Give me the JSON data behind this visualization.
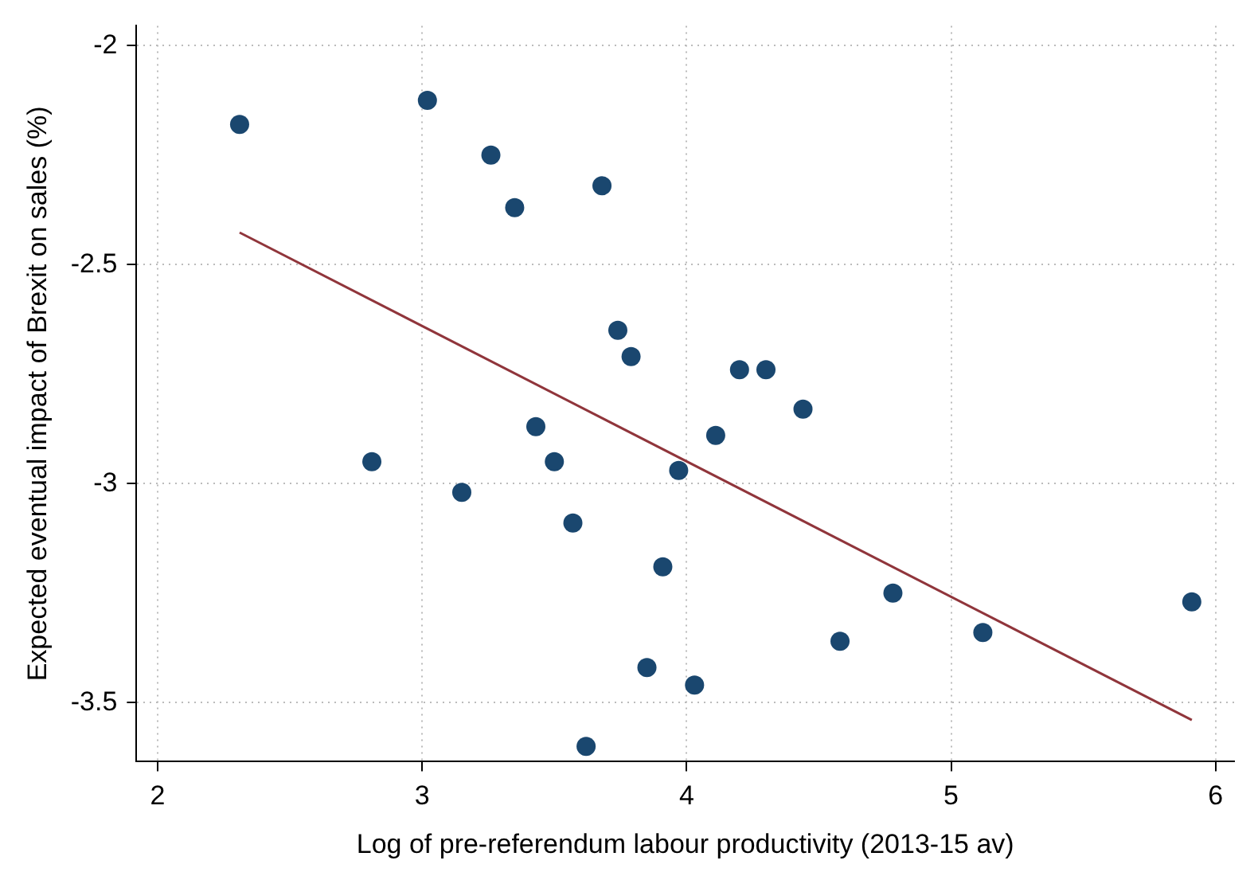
{
  "chart_data": {
    "type": "scatter",
    "xlabel": "Log of pre-referendum labour productivity (2013-15 av)",
    "ylabel": "Expected eventual impact of Brexit on sales (%)",
    "xlim": [
      1.92,
      6.07
    ],
    "ylim": [
      -3.635,
      -1.955
    ],
    "xticks": [
      2,
      3,
      4,
      5,
      6
    ],
    "yticks": [
      -3.5,
      -3,
      -2.5,
      -2
    ],
    "grid": true,
    "legend": false,
    "marker": "circle",
    "series": [
      {
        "type": "scatter",
        "color": "#1a476f",
        "x": [
          2.31,
          3.02,
          3.26,
          3.35,
          3.68,
          3.74,
          3.79,
          4.2,
          4.3,
          4.44,
          4.11,
          3.43,
          2.81,
          3.5,
          3.97,
          3.15,
          3.57,
          3.91,
          4.78,
          5.91,
          4.58,
          5.12,
          3.85,
          4.03,
          3.62
        ],
        "values": [
          -2.18,
          -2.125,
          -2.25,
          -2.37,
          -2.32,
          -2.65,
          -2.71,
          -2.74,
          -2.74,
          -2.83,
          -2.89,
          -2.87,
          -2.95,
          -2.95,
          -2.97,
          -3.02,
          -3.09,
          -3.19,
          -3.25,
          -3.27,
          -3.36,
          -3.34,
          -3.42,
          -3.46,
          -3.6
        ]
      },
      {
        "type": "line",
        "color": "#90353b",
        "marker": "none",
        "line_style": "solid",
        "x": [
          2.31,
          5.91
        ],
        "values": [
          -2.427,
          -3.54
        ]
      }
    ]
  }
}
